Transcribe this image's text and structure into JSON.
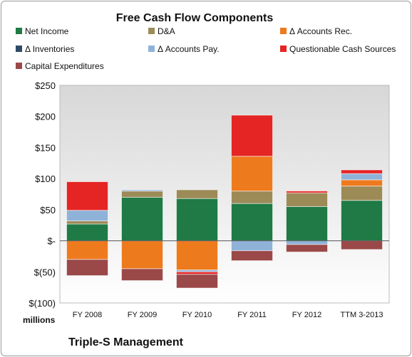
{
  "chart_data": {
    "type": "bar",
    "stacked": true,
    "title": "Free Cash Flow Components",
    "ylabel": "",
    "xlabel": "",
    "unit_label": "millions",
    "company": "Triple-S Management",
    "ylim": [
      -100,
      250
    ],
    "y_ticks": [
      250,
      200,
      150,
      100,
      50,
      0,
      -50,
      -100
    ],
    "y_tick_labels": [
      "$250",
      "$200",
      "$150",
      "$100",
      "$50",
      "$-",
      "$(50)",
      "$(100)"
    ],
    "categories": [
      "FY 2008",
      "FY 2009",
      "FY 2010",
      "FY 2011",
      "FY 2012",
      "TTM 3-2013"
    ],
    "grid": false,
    "legend_position": "top",
    "series": [
      {
        "name": "Net Income",
        "color": "#1f7a45",
        "values": [
          27,
          70,
          68,
          60,
          55,
          65
        ]
      },
      {
        "name": "D&A",
        "color": "#9c8a57",
        "values": [
          5,
          10,
          14,
          20,
          22,
          23
        ]
      },
      {
        "name": "Δ Accounts Rec.",
        "color": "#ee7a1e",
        "values": [
          -30,
          -45,
          -47,
          56,
          0,
          10
        ]
      },
      {
        "name": "Δ Inventories",
        "color": "#2f4a66",
        "values": [
          0,
          0,
          0,
          0,
          0,
          0
        ]
      },
      {
        "name": "Δ Accounts Pay.",
        "color": "#8fb2d9",
        "values": [
          17,
          2,
          -3,
          -16,
          -6,
          10
        ]
      },
      {
        "name": "Questionable Cash Sources",
        "color": "#e52424",
        "values": [
          46,
          0,
          -4,
          66,
          3,
          6
        ]
      },
      {
        "name": "Capital Expenditures",
        "color": "#9b4848",
        "values": [
          -26,
          -19,
          -22,
          -16,
          -12,
          -14
        ]
      }
    ]
  }
}
